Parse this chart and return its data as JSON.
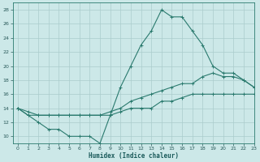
{
  "xlabel": "Humidex (Indice chaleur)",
  "background_color": "#cce8e8",
  "grid_color": "#aacccc",
  "line_color": "#2a7a6e",
  "hours": [
    0,
    1,
    2,
    3,
    4,
    5,
    6,
    7,
    8,
    9,
    10,
    11,
    12,
    13,
    14,
    15,
    16,
    17,
    18,
    19,
    20,
    21,
    22,
    23
  ],
  "line_max": [
    14,
    13,
    12,
    11,
    11,
    10,
    10,
    10,
    9,
    13,
    17,
    20,
    23,
    25,
    28,
    27,
    27,
    25,
    23,
    20,
    19,
    19,
    18,
    17
  ],
  "line_mean": [
    14,
    13.5,
    13,
    13,
    13,
    13,
    13,
    13,
    13,
    13.5,
    14,
    15,
    15.5,
    16,
    16.5,
    17,
    17.5,
    17.5,
    18.5,
    19,
    18.5,
    18.5,
    18,
    17
  ],
  "line_min": [
    14,
    13,
    13,
    13,
    13,
    13,
    13,
    13,
    13,
    13,
    13.5,
    14,
    14,
    14,
    15,
    15,
    15.5,
    16,
    16,
    16,
    16,
    16,
    16,
    16
  ],
  "ylim": [
    9,
    29
  ],
  "xlim": [
    -0.5,
    23
  ],
  "yticks": [
    10,
    12,
    14,
    16,
    18,
    20,
    22,
    24,
    26,
    28
  ],
  "xticks": [
    0,
    1,
    2,
    3,
    4,
    5,
    6,
    7,
    8,
    9,
    10,
    11,
    12,
    13,
    14,
    15,
    16,
    17,
    18,
    19,
    20,
    21,
    22,
    23
  ]
}
